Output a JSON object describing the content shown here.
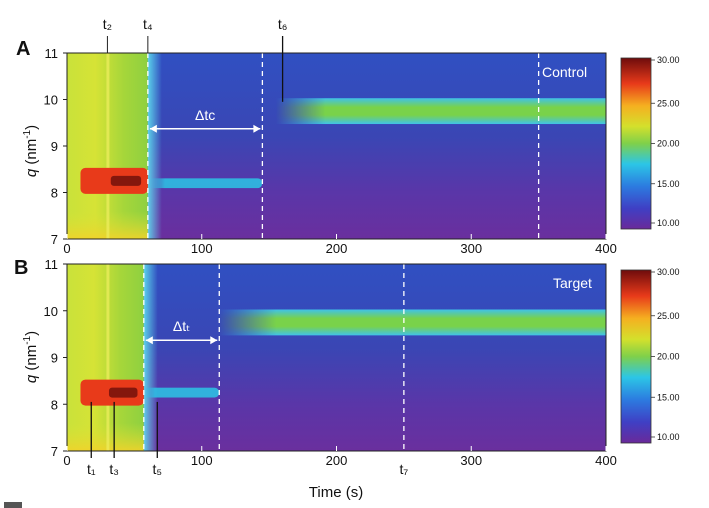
{
  "chart_data": [
    {
      "panel": "A",
      "type": "heatmap",
      "inset_label": "Control",
      "xlabel": "",
      "ylabel": "q (nm⁻¹)",
      "xlim": [
        0,
        400
      ],
      "ylim": [
        7,
        11
      ],
      "x_ticks": [
        "0",
        "100",
        "200",
        "300",
        "400"
      ],
      "y_ticks": [
        "7",
        "8",
        "9",
        "10",
        "11"
      ],
      "colorbar": {
        "min": 10,
        "max": 30,
        "ticks": [
          "30.00",
          "25.00",
          "20.00",
          "15.00",
          "10.00"
        ]
      },
      "time_markers": [
        {
          "label": "t₂",
          "x": 30,
          "style": "solid-tick"
        },
        {
          "label": "t₄",
          "x": 60,
          "style": "dashed"
        },
        {
          "label": "t₆",
          "x": 160,
          "style": "solid-line"
        },
        {
          "x": 145,
          "style": "dashed"
        },
        {
          "x": 350,
          "style": "dashed"
        }
      ],
      "interval": {
        "label": "Δtᴄ",
        "x_start": 60,
        "x_end": 145,
        "q": 9.37
      },
      "features": [
        {
          "name": "initial peak",
          "q": 8.25,
          "t_start": 10,
          "t_end": 60,
          "intensity": 28
        },
        {
          "name": "transient band",
          "q": 8.2,
          "t_start": 60,
          "t_end": 145,
          "intensity": 15
        },
        {
          "name": "final phase peak",
          "q": 9.75,
          "t_start": 155,
          "t_end": 400,
          "intensity": 18
        }
      ]
    },
    {
      "panel": "B",
      "type": "heatmap",
      "inset_label": "Target",
      "xlabel": "Time (s)",
      "ylabel": "q (nm⁻¹)",
      "xlim": [
        0,
        400
      ],
      "ylim": [
        7,
        11
      ],
      "x_ticks": [
        "0",
        "100",
        "200",
        "300",
        "400"
      ],
      "y_ticks": [
        "7",
        "8",
        "9",
        "10",
        "11"
      ],
      "colorbar": {
        "min": 10,
        "max": 30,
        "ticks": [
          "30.00",
          "25.00",
          "20.00",
          "15.00",
          "10.00"
        ]
      },
      "time_markers": [
        {
          "label": "t₁",
          "x": 18,
          "style": "solid-line"
        },
        {
          "label": "t₃",
          "x": 35,
          "style": "solid-line"
        },
        {
          "x": 57,
          "style": "dashed"
        },
        {
          "label": "t₅",
          "x": 67,
          "style": "solid-line"
        },
        {
          "x": 113,
          "style": "dashed"
        },
        {
          "label": "t₇",
          "x": 250,
          "style": "dashed"
        }
      ],
      "interval": {
        "label": "Δtₜ",
        "x_start": 57,
        "x_end": 113,
        "q": 9.37
      },
      "features": [
        {
          "name": "initial peak",
          "q": 8.25,
          "t_start": 10,
          "t_end": 57,
          "intensity": 28
        },
        {
          "name": "transient band",
          "q": 8.25,
          "t_start": 57,
          "t_end": 113,
          "intensity": 15
        },
        {
          "name": "final phase peak",
          "q": 9.75,
          "t_start": 112,
          "t_end": 400,
          "intensity": 18
        }
      ]
    }
  ]
}
